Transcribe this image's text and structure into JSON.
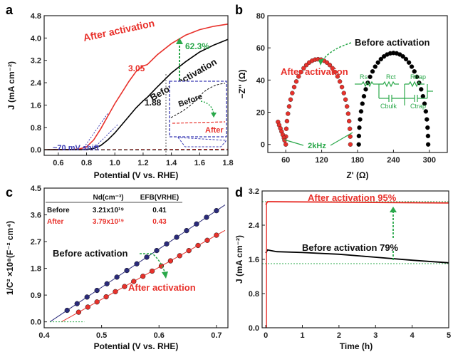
{
  "chart_data": [
    {
      "panel": "a",
      "type": "line",
      "xlabel": "Potential (V vs. RHE)",
      "ylabel": "J (mA cm⁻²)",
      "xlim": [
        0.5,
        1.8
      ],
      "ylim": [
        -0.2,
        4.8
      ],
      "xticks": [
        "0.6",
        "0.8",
        "1.0",
        "1.2",
        "1.4",
        "1.6",
        "1.8"
      ],
      "yticks": [
        "0.0",
        "0.8",
        "1.6",
        "2.4",
        "3.2",
        "4.0",
        "4.8"
      ],
      "series": [
        {
          "name": "After activation",
          "color": "#e8312b",
          "x": [
            0.5,
            0.7,
            0.75,
            0.8,
            0.85,
            0.9,
            0.95,
            1.0,
            1.05,
            1.1,
            1.15,
            1.2,
            1.23,
            1.3,
            1.4,
            1.5,
            1.6,
            1.7,
            1.8
          ],
          "y": [
            0.0,
            0.01,
            0.03,
            0.1,
            0.35,
            0.75,
            1.2,
            1.65,
            2.05,
            2.45,
            2.8,
            3.0,
            3.05,
            3.4,
            3.8,
            4.1,
            4.3,
            4.42,
            4.5
          ]
        },
        {
          "name": "Before activation",
          "color": "#000000",
          "x": [
            0.5,
            0.8,
            0.85,
            0.9,
            0.95,
            1.0,
            1.05,
            1.1,
            1.15,
            1.2,
            1.23,
            1.3,
            1.4,
            1.5,
            1.6,
            1.7,
            1.8
          ],
          "y": [
            0.0,
            0.01,
            0.05,
            0.15,
            0.35,
            0.6,
            0.9,
            1.2,
            1.5,
            1.75,
            1.88,
            2.25,
            2.75,
            3.15,
            3.5,
            3.75,
            3.95
          ]
        },
        {
          "name": "After (dark)",
          "color": "#e8312b",
          "dash": true,
          "x": [
            0.5,
            1.8
          ],
          "y": [
            0.0,
            0.02
          ]
        },
        {
          "name": "Before (dark)",
          "color": "#000000",
          "dash": true,
          "x": [
            0.5,
            1.8
          ],
          "y": [
            0.0,
            0.0
          ]
        }
      ],
      "annotations": {
        "after_label": "After activation",
        "before_label": "Before activation",
        "gain": "62.3%",
        "after_value": "3.05",
        "before_value": "1.88",
        "shift": "~70 mV shift",
        "inset_before": "Before",
        "inset_after": "After"
      }
    },
    {
      "panel": "b",
      "type": "scatter",
      "xlabel": "Z' (Ω)",
      "ylabel": "−Z'' (Ω)",
      "xlim": [
        30,
        330
      ],
      "ylim": [
        -5,
        80
      ],
      "xticks": [
        "60",
        "120",
        "180",
        "240",
        "300"
      ],
      "yticks": [
        "0",
        "20",
        "40",
        "60",
        "80"
      ],
      "series": [
        {
          "name": "After activation",
          "color": "#e8312b",
          "center": 114,
          "radius": 54,
          "start": 59,
          "low_freq_tail": true
        },
        {
          "name": "Before activation",
          "color": "#000000",
          "center": 240,
          "radius": 58,
          "start": 165
        }
      ],
      "annotations": {
        "after_label": "After activation",
        "before_label": "Before activation",
        "freq": "2kHz",
        "circuit": [
          "Rs",
          "Rct",
          "Rtrap",
          "Cbulk",
          "Ctrap"
        ]
      }
    },
    {
      "panel": "c",
      "type": "scatter",
      "xlabel": "Potential (V vs. RHE)",
      "ylabel": "1/C² ×10⁸(F⁻² cm⁴)",
      "xlim": [
        0.4,
        0.72
      ],
      "ylim": [
        -0.2,
        4.5
      ],
      "xticks": [
        "0.4",
        "0.5",
        "0.6",
        "0.7"
      ],
      "yticks": [
        "0.0",
        "0.9",
        "1.8",
        "2.7",
        "3.6",
        "4.5"
      ],
      "series": [
        {
          "name": "Before activation",
          "color": "#2a2a7a",
          "x0": 0.41,
          "x_start": 0.44,
          "x_end": 0.7,
          "slope": 12.9,
          "points": 16
        },
        {
          "name": "After activation",
          "color": "#e8312b",
          "x0": 0.43,
          "x_start": 0.46,
          "x_end": 0.7,
          "slope": 10.8,
          "points": 16
        }
      ],
      "table": {
        "headers": [
          "",
          "Nd(cm⁻³)",
          "EFB(VRHE)"
        ],
        "rows": [
          [
            "Before",
            "3.21x10¹⁹",
            "0.41"
          ],
          [
            "After",
            "3.79x10¹⁹",
            "0.43"
          ]
        ]
      },
      "annotations": {
        "before_label": "Before activation",
        "after_label": "After activation"
      }
    },
    {
      "panel": "d",
      "type": "line",
      "xlabel": "Time (h)",
      "ylabel": "J (mA cm⁻²)",
      "xlim": [
        -0.1,
        5.0
      ],
      "ylim": [
        0.0,
        3.2
      ],
      "xticks": [
        "0",
        "1",
        "2",
        "3",
        "4",
        "5"
      ],
      "yticks": [
        "0.0",
        "0.8",
        "1.6",
        "2.4",
        "3.2"
      ],
      "series": [
        {
          "name": "After activation",
          "color": "#e8312b",
          "x": [
            0.0,
            0.05,
            5.0
          ],
          "y": [
            2.88,
            2.95,
            2.92
          ]
        },
        {
          "name": "Before activation",
          "color": "#000000",
          "x": [
            0.0,
            0.05,
            0.3,
            1.0,
            2.0,
            3.0,
            4.0,
            5.0
          ],
          "y": [
            1.75,
            1.82,
            1.78,
            1.76,
            1.72,
            1.65,
            1.58,
            1.52
          ]
        }
      ],
      "guides": {
        "top": 2.95,
        "bottom": 1.5,
        "color": "#2aa84a"
      },
      "annotations": {
        "after_label": "After activation 95%",
        "before_label": "Before activation 79%"
      }
    }
  ],
  "panels": {
    "a": "a",
    "b": "b",
    "c": "c",
    "d": "d"
  }
}
